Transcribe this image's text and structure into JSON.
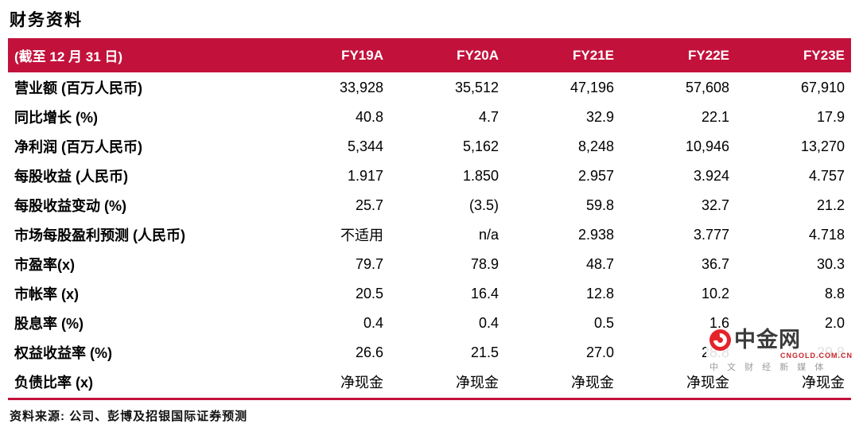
{
  "page": {
    "title": "财务资料",
    "source": "资料来源:  公司、彭博及招银国际证券预测"
  },
  "table": {
    "header": [
      "(截至 12 月 31 日)",
      "FY19A",
      "FY20A",
      "FY21E",
      "FY22E",
      "FY23E"
    ],
    "rows": [
      {
        "label": "营业额 (百万人民币)",
        "values": [
          "33,928",
          "35,512",
          "47,196",
          "57,608",
          "67,910"
        ]
      },
      {
        "label": "同比增长 (%)",
        "values": [
          "40.8",
          "4.7",
          "32.9",
          "22.1",
          "17.9"
        ]
      },
      {
        "label": "净利润 (百万人民币)",
        "values": [
          "5,344",
          "5,162",
          "8,248",
          "10,946",
          "13,270"
        ]
      },
      {
        "label": "每股收益 (人民币)",
        "values": [
          "1.917",
          "1.850",
          "2.957",
          "3.924",
          "4.757"
        ]
      },
      {
        "label": "每股收益变动 (%)",
        "values": [
          "25.7",
          "(3.5)",
          "59.8",
          "32.7",
          "21.2"
        ]
      },
      {
        "label": "市场每股盈利预测 (人民币)",
        "values": [
          "不适用",
          "n/a",
          "2.938",
          "3.777",
          "4.718"
        ]
      },
      {
        "label": "市盈率(x)",
        "values": [
          "79.7",
          "78.9",
          "48.7",
          "36.7",
          "30.3"
        ]
      },
      {
        "label": "市帐率 (x)",
        "values": [
          "20.5",
          "16.4",
          "12.8",
          "10.2",
          "8.8"
        ]
      },
      {
        "label": "股息率 (%)",
        "values": [
          "0.4",
          "0.4",
          "0.5",
          "1.6",
          "2.0"
        ]
      },
      {
        "label": "权益收益率 (%)",
        "values": [
          "26.6",
          "21.5",
          "27.0",
          "28.8",
          "29.8"
        ]
      },
      {
        "label": "负债比率 (x)",
        "values": [
          "净现金",
          "净现金",
          "净现金",
          "净现金",
          "净现金"
        ]
      }
    ]
  },
  "watermark": {
    "name": "中金网",
    "domain": "CNGOLD.COM.CN",
    "tagline": "中 文 财 经 新 媒 体",
    "logo": "cngold-swirl-icon"
  },
  "colors": {
    "header_background": "#C2123C",
    "header_text": "#FFFFFF",
    "bottom_rule": "#C2123C",
    "watermark_logo_red": "#E4232B",
    "watermark_domain_red": "#C9252C",
    "watermark_tagline_gray": "#9A9A9A"
  }
}
